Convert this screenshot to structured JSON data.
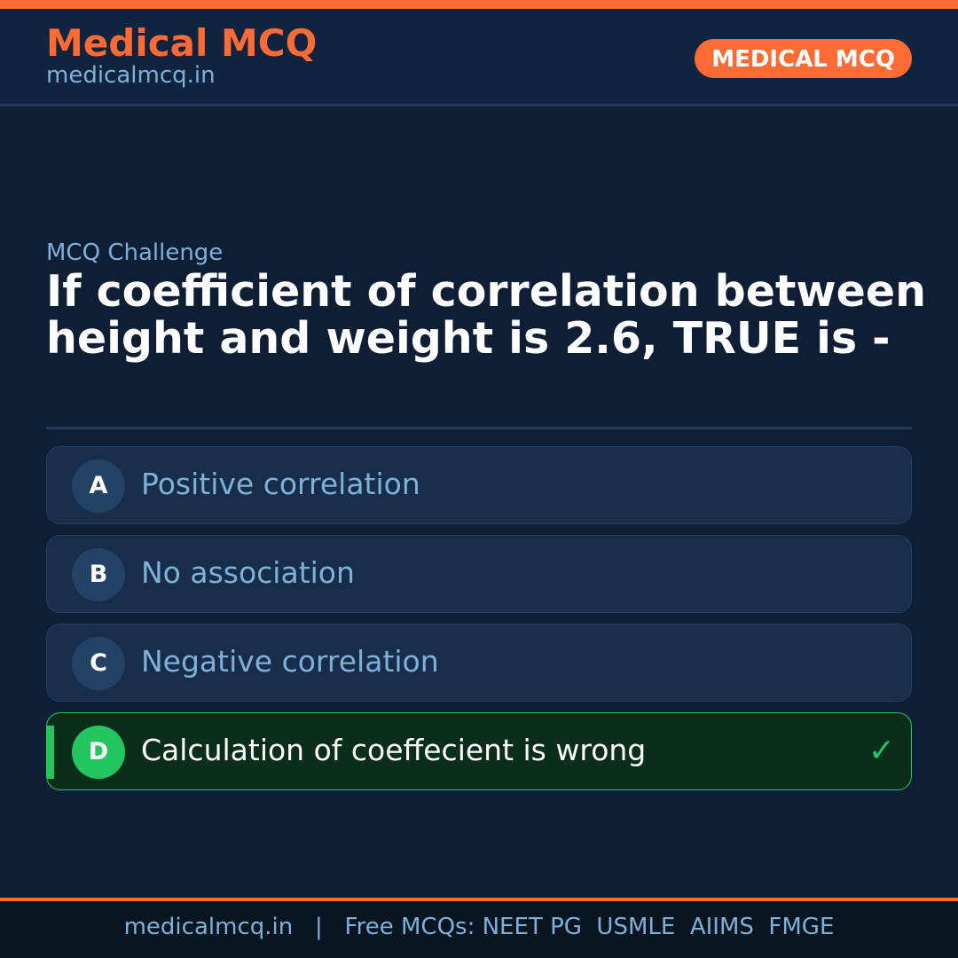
{
  "header": {
    "brand": "Medical MCQ",
    "site": "medicalmcq.in",
    "badge": "MEDICAL MCQ"
  },
  "main": {
    "kicker": "MCQ Challenge",
    "question": "If coefficient of correlation between height and weight is 2.6, TRUE is -",
    "options": [
      {
        "letter": "A",
        "text": "Positive correlation"
      },
      {
        "letter": "B",
        "text": "No association"
      },
      {
        "letter": "C",
        "text": "Negative correlation"
      },
      {
        "letter": "D",
        "text": "Calculation of coeffecient is wrong",
        "correct": true
      }
    ],
    "correct_icon": "checkmark-icon"
  },
  "footer": {
    "text": "medicalmcq.in   |   Free MCQs: NEET PG  USMLE  AIIMS  FMGE"
  },
  "colors": {
    "accent": "#ff6b35",
    "correct": "#22c55e",
    "background": "#0d1e35"
  }
}
